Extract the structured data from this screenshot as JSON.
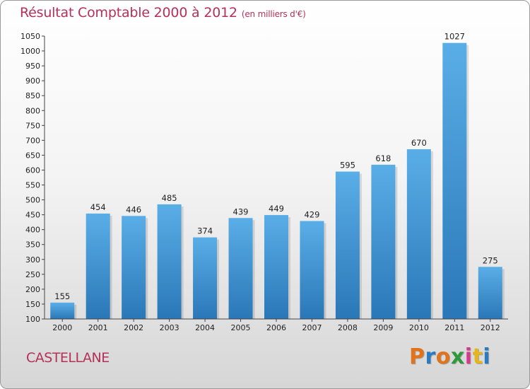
{
  "chart_data": {
    "type": "bar",
    "title": "Résultat Comptable 2000 à 2012",
    "subtitle": "(en milliers d'€)",
    "xlabel": "",
    "ylabel": "",
    "categories": [
      "2000",
      "2001",
      "2002",
      "2003",
      "2004",
      "2005",
      "2006",
      "2007",
      "2008",
      "2009",
      "2010",
      "2011",
      "2012"
    ],
    "values": [
      155,
      454,
      446,
      485,
      374,
      439,
      449,
      429,
      595,
      618,
      670,
      1027,
      275
    ],
    "ylim": [
      100,
      1050
    ],
    "yticks": [
      100,
      150,
      200,
      250,
      300,
      350,
      400,
      450,
      500,
      550,
      600,
      650,
      700,
      750,
      800,
      850,
      900,
      950,
      1000,
      1050
    ],
    "grid": false,
    "bar_color": "#3d91d4"
  },
  "commune": "CASTELLANE",
  "brand": {
    "letters": [
      "P",
      "r",
      "o",
      "x",
      "i",
      "t",
      "i"
    ],
    "colors": [
      "#e0731b",
      "#2c7bc1",
      "#e0731b",
      "#2f9a3c",
      "#d63a8b",
      "#e7b51b",
      "#2c7bc1"
    ]
  }
}
